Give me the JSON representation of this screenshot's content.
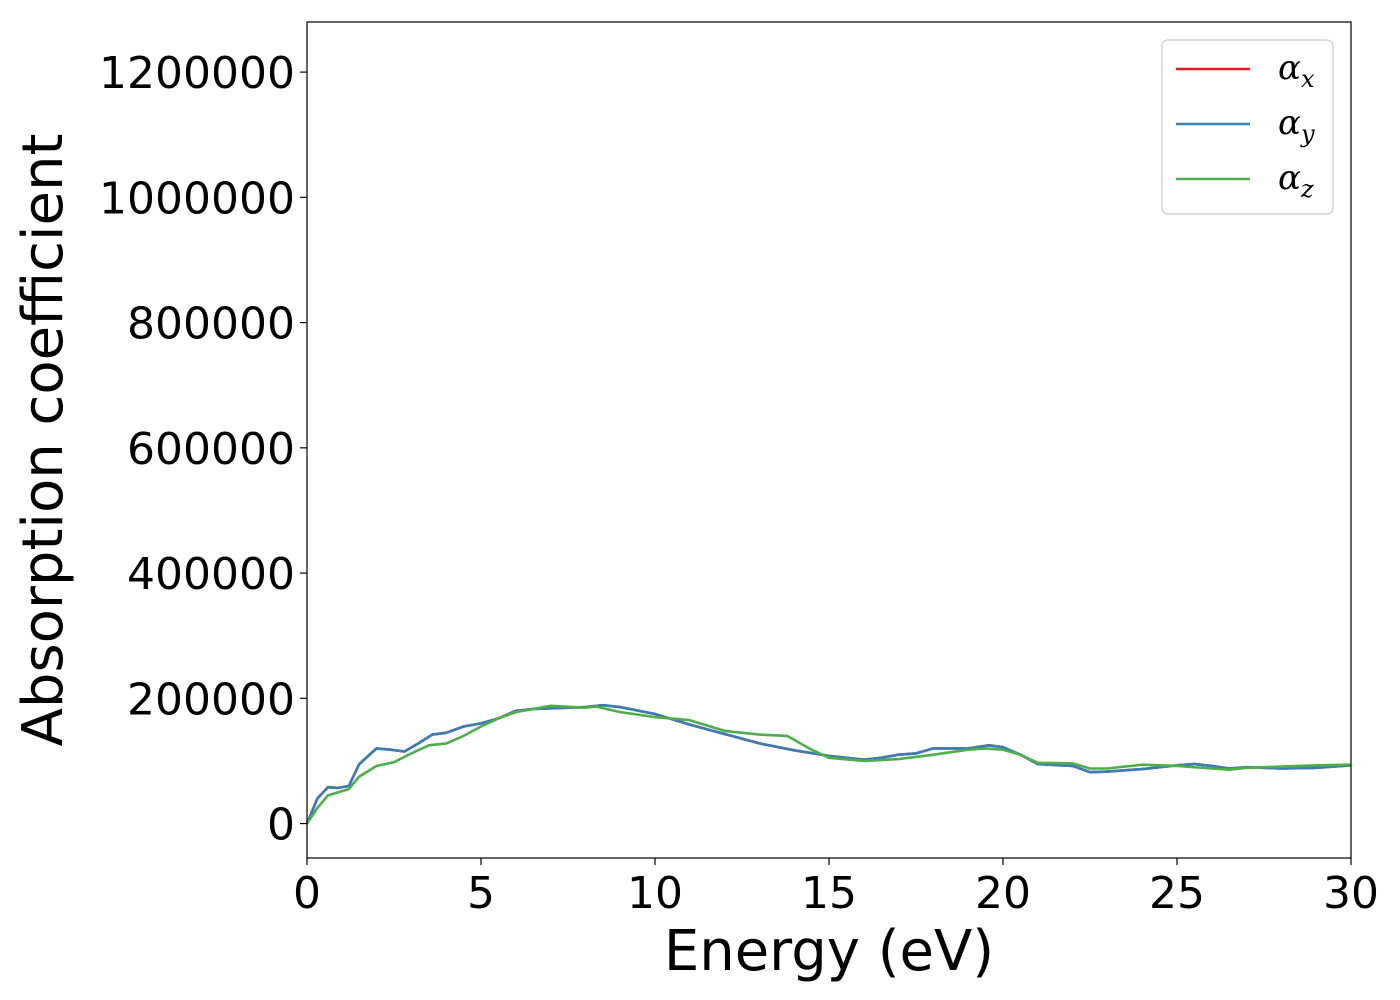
{
  "chart_data": {
    "type": "line",
    "title": "",
    "xlabel": "Energy (eV)",
    "ylabel": "Absorption coefficient",
    "xlim": [
      0,
      30
    ],
    "ylim": [
      -55000,
      1280000
    ],
    "xticks": [
      0,
      5,
      10,
      15,
      20,
      25,
      30
    ],
    "xtick_labels": [
      "0",
      "5",
      "10",
      "15",
      "20",
      "25",
      "30"
    ],
    "yticks": [
      0,
      200000,
      400000,
      600000,
      800000,
      1000000,
      1200000
    ],
    "ytick_labels": [
      "0",
      "200000",
      "400000",
      "600000",
      "800000",
      "1000000",
      "1200000"
    ],
    "grid": false,
    "legend_position": "top-right",
    "series": [
      {
        "name": "αx",
        "legend_base": "α",
        "legend_sub": "x",
        "color": "#e41a1c",
        "x": [
          0,
          0.3,
          0.6,
          0.9,
          1.2,
          1.5,
          2.0,
          2.4,
          2.8,
          3.2,
          3.6,
          4.0,
          4.5,
          5.0,
          5.5,
          6.0,
          6.5,
          7.0,
          8.0,
          8.5,
          9.0,
          10.0,
          11.0,
          12.0,
          13.0,
          14.0,
          15.0,
          15.5,
          16.0,
          16.5,
          17.0,
          17.5,
          18.0,
          19.0,
          19.6,
          20.0,
          20.5,
          21.0,
          22.0,
          22.5,
          23.0,
          24.0,
          25.0,
          25.5,
          26.0,
          26.5,
          27.0,
          28.0,
          29.0,
          30.0
        ],
        "y": [
          0,
          40000,
          58000,
          57000,
          60000,
          95000,
          120000,
          118000,
          115000,
          128000,
          142000,
          145000,
          155000,
          160000,
          168000,
          180000,
          183000,
          184000,
          186000,
          189000,
          186000,
          175000,
          158000,
          143000,
          128000,
          117000,
          108000,
          105000,
          102000,
          105000,
          110000,
          112000,
          120000,
          120000,
          125000,
          122000,
          110000,
          95000,
          92000,
          82000,
          83000,
          87000,
          93000,
          95000,
          92000,
          88000,
          90000,
          88000,
          89000,
          93000
        ]
      },
      {
        "name": "αy",
        "legend_base": "α",
        "legend_sub": "y",
        "color": "#377eb8",
        "x": [
          0,
          0.3,
          0.6,
          0.9,
          1.2,
          1.5,
          2.0,
          2.4,
          2.8,
          3.2,
          3.6,
          4.0,
          4.5,
          5.0,
          5.5,
          6.0,
          6.5,
          7.0,
          8.0,
          8.5,
          9.0,
          10.0,
          11.0,
          12.0,
          13.0,
          14.0,
          15.0,
          15.5,
          16.0,
          16.5,
          17.0,
          17.5,
          18.0,
          19.0,
          19.6,
          20.0,
          20.5,
          21.0,
          22.0,
          22.5,
          23.0,
          24.0,
          25.0,
          25.5,
          26.0,
          26.5,
          27.0,
          28.0,
          29.0,
          30.0
        ],
        "y": [
          0,
          40000,
          58000,
          57000,
          60000,
          95000,
          120000,
          118000,
          115000,
          128000,
          142000,
          145000,
          155000,
          160000,
          168000,
          180000,
          183000,
          184000,
          186000,
          189000,
          186000,
          175000,
          158000,
          143000,
          128000,
          117000,
          108000,
          105000,
          102000,
          105000,
          110000,
          112000,
          120000,
          120000,
          125000,
          122000,
          110000,
          95000,
          92000,
          82000,
          83000,
          87000,
          93000,
          95000,
          92000,
          88000,
          90000,
          88000,
          89000,
          93000
        ]
      },
      {
        "name": "αz",
        "legend_base": "α",
        "legend_sub": "z",
        "color": "#4daf4a",
        "x": [
          0,
          0.3,
          0.6,
          0.9,
          1.2,
          1.5,
          2.0,
          2.5,
          3.0,
          3.5,
          4.0,
          4.5,
          5.0,
          5.5,
          6.0,
          7.0,
          8.0,
          8.3,
          9.0,
          10.0,
          11.0,
          12.0,
          13.0,
          13.8,
          14.5,
          15.0,
          16.0,
          17.0,
          18.0,
          19.0,
          19.5,
          20.0,
          20.5,
          21.0,
          22.0,
          22.5,
          23.0,
          24.0,
          25.0,
          26.0,
          26.5,
          27.0,
          28.0,
          29.0,
          30.0
        ],
        "y": [
          0,
          25000,
          45000,
          50000,
          55000,
          75000,
          92000,
          98000,
          112000,
          125000,
          128000,
          140000,
          155000,
          168000,
          178000,
          188000,
          185000,
          187000,
          178000,
          170000,
          165000,
          148000,
          142000,
          140000,
          118000,
          105000,
          100000,
          103000,
          110000,
          118000,
          120000,
          118000,
          110000,
          97000,
          96000,
          88000,
          88000,
          94000,
          92000,
          88000,
          86000,
          89000,
          91000,
          93000,
          94000
        ]
      }
    ]
  }
}
